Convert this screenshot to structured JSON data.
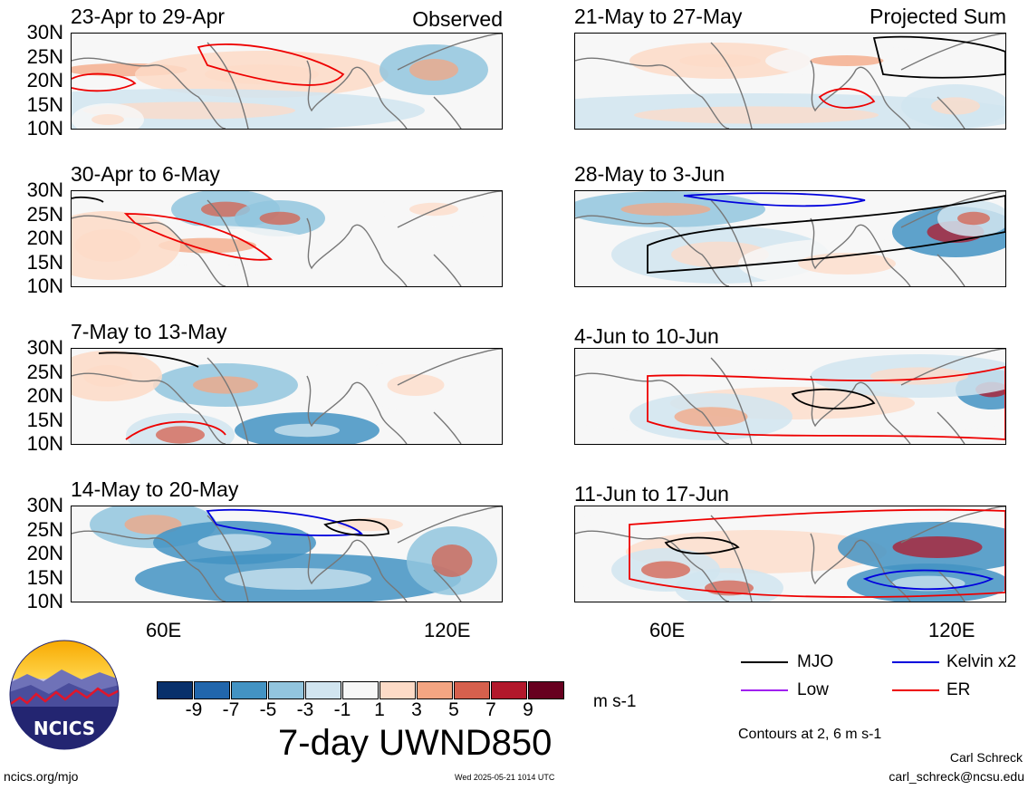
{
  "header": {
    "observed_label": "Observed",
    "projected_label": "Projected Sum"
  },
  "lat_labels": [
    "30N",
    "25N",
    "20N",
    "15N",
    "10N"
  ],
  "lon_labels": [
    "60E",
    "120E"
  ],
  "panels": {
    "left": [
      {
        "title": "23-Apr to 29-Apr"
      },
      {
        "title": "30-Apr to 6-May"
      },
      {
        "title": "7-May to 13-May"
      },
      {
        "title": "14-May to 20-May"
      }
    ],
    "right": [
      {
        "title": "21-May to 27-May"
      },
      {
        "title": "28-May to 3-Jun"
      },
      {
        "title": "4-Jun to 10-Jun"
      },
      {
        "title": "11-Jun to 17-Jun"
      }
    ]
  },
  "colorbar": {
    "labels": [
      "-9",
      "-7",
      "-5",
      "-3",
      "-1",
      "1",
      "3",
      "5",
      "7",
      "9"
    ],
    "colors": [
      "#08306b",
      "#2166ac",
      "#4393c3",
      "#92c5de",
      "#d1e5f0",
      "#f7f7f7",
      "#fddbc7",
      "#f4a582",
      "#d6604d",
      "#b2182b",
      "#67001f"
    ],
    "units": "m s-1",
    "title": "7-day UWND850"
  },
  "legend": {
    "items": [
      {
        "label": "MJO",
        "color": "#000000"
      },
      {
        "label": "Kelvin x2",
        "color": "#0000dd"
      },
      {
        "label": "Low",
        "color": "#a020f0"
      },
      {
        "label": "ER",
        "color": "#ee0000"
      }
    ],
    "contours_note": "Contours at 2, 6 m s-1"
  },
  "logo": {
    "text": "NCICS"
  },
  "footer": {
    "site": "ncics.org/mjo",
    "timestamp": "Wed 2025-05-21 1014 UTC",
    "author": "Carl Schreck",
    "email": "carl_schreck@ncsu.edu"
  }
}
